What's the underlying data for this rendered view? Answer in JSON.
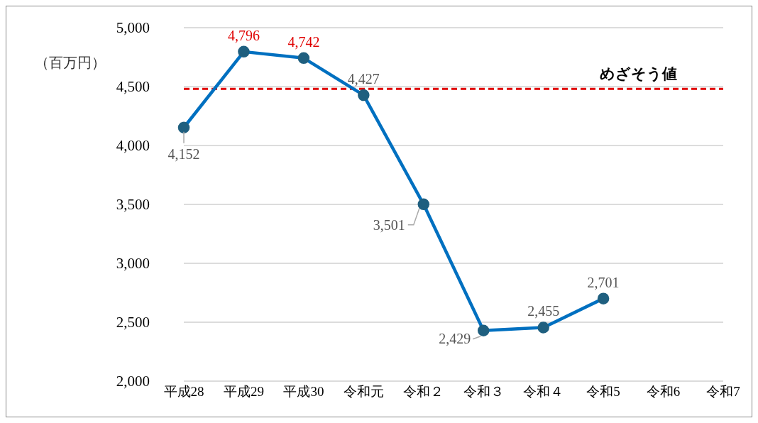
{
  "chart_data": {
    "type": "line",
    "ylabel": "（百万円）",
    "categories": [
      "平成28",
      "平成29",
      "平成30",
      "令和元",
      "令和２",
      "令和３",
      "令和４",
      "令和5",
      "令和6",
      "令和7"
    ],
    "series": [
      {
        "color": "#0070c0",
        "values": [
          4152,
          4796,
          4742,
          4427,
          3501,
          2429,
          2455,
          2701,
          null,
          null
        ],
        "value_labels": [
          "4,152",
          "4,796",
          "4,742",
          "4,427",
          "3,501",
          "2,429",
          "2,455",
          "2,701",
          null,
          null
        ]
      }
    ],
    "ylim": [
      2000,
      5000
    ],
    "yticks": [
      {
        "value": 2000,
        "label": "2,000"
      },
      {
        "value": 2500,
        "label": "2,500"
      },
      {
        "value": 3000,
        "label": "3,000"
      },
      {
        "value": 3500,
        "label": "3,500"
      },
      {
        "value": 4000,
        "label": "4,000"
      },
      {
        "value": 4500,
        "label": "4,500"
      },
      {
        "value": 5000,
        "label": "5,000"
      }
    ],
    "grid": "y",
    "marker": "circle",
    "line_style": "solid",
    "ref_lines": [
      {
        "axis": "y",
        "value": 4480,
        "label": "めざそう値",
        "color": "#e00000",
        "line_style": "dashed"
      }
    ]
  }
}
